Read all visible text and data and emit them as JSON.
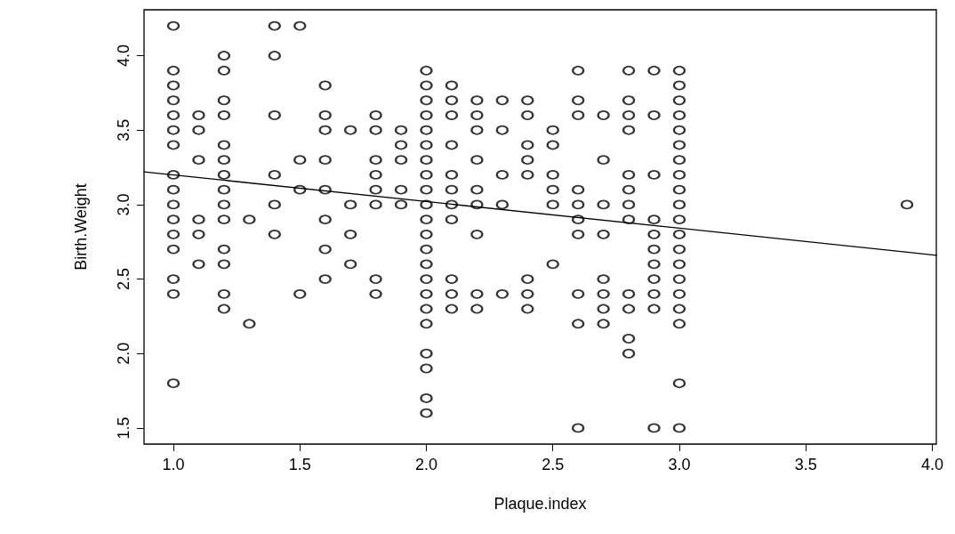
{
  "chart_data": {
    "type": "scatter",
    "xlabel": "Plaque.index",
    "ylabel": "Birth.Weight",
    "xlim": [
      0.884,
      4.016
    ],
    "ylim": [
      1.392,
      4.308
    ],
    "xticks": [
      {
        "value": 1,
        "label": "1.0"
      },
      1.5,
      {
        "value": 2,
        "label": "2.0"
      },
      2.5,
      {
        "value": 3,
        "label": "3.0"
      },
      3.5,
      {
        "value": 4,
        "label": "4.0"
      }
    ],
    "yticks": [
      1.5,
      {
        "value": 2,
        "label": "2.0"
      },
      2.5,
      {
        "value": 3,
        "label": "3.0"
      },
      3.5,
      {
        "value": 4,
        "label": "4.0"
      }
    ],
    "grid": false,
    "marker": "circle",
    "series": [
      {
        "color": "#000000",
        "x": [
          1,
          1,
          1,
          1,
          1,
          1,
          1,
          1,
          1,
          1,
          1,
          1,
          1,
          1,
          1,
          1,
          1.1,
          1.1,
          1.1,
          1.1,
          1.1,
          1.1,
          1.2,
          1.2,
          1.2,
          1.2,
          1.2,
          1.2,
          1.2,
          1.2,
          1.2,
          1.2,
          1.2,
          1.2,
          1.2,
          1.2,
          1.3,
          1.3,
          1.4,
          1.4,
          1.4,
          1.4,
          1.4,
          1.4,
          1.5,
          1.5,
          1.5,
          1.5,
          1.6,
          1.6,
          1.6,
          1.6,
          1.6,
          1.6,
          1.6,
          1.6,
          1.7,
          1.7,
          1.7,
          1.7,
          1.8,
          1.8,
          1.8,
          1.8,
          1.8,
          1.8,
          1.8,
          1.8,
          1.9,
          1.9,
          1.9,
          1.9,
          1.9,
          2,
          2,
          2,
          2,
          2,
          2,
          2,
          2,
          2,
          2,
          2,
          2,
          2,
          2,
          2,
          2,
          2,
          2,
          2,
          2,
          2,
          2,
          2.1,
          2.1,
          2.1,
          2.1,
          2.1,
          2.1,
          2.1,
          2.1,
          2.1,
          2.1,
          2.1,
          2.2,
          2.2,
          2.2,
          2.2,
          2.2,
          2.2,
          2.2,
          2.2,
          2.2,
          2.3,
          2.3,
          2.3,
          2.3,
          2.3,
          2.4,
          2.4,
          2.4,
          2.4,
          2.4,
          2.4,
          2.4,
          2.4,
          2.5,
          2.5,
          2.5,
          2.5,
          2.5,
          2.5,
          2.6,
          2.6,
          2.6,
          2.6,
          2.6,
          2.6,
          2.6,
          2.6,
          2.6,
          2.6,
          2.7,
          2.7,
          2.7,
          2.7,
          2.7,
          2.7,
          2.7,
          2.7,
          2.8,
          2.8,
          2.8,
          2.8,
          2.8,
          2.8,
          2.8,
          2.8,
          2.8,
          2.8,
          2.8,
          2.8,
          2.9,
          2.9,
          2.9,
          2.9,
          2.9,
          2.9,
          2.9,
          2.9,
          2.9,
          2.9,
          2.9,
          3,
          3,
          3,
          3,
          3,
          3,
          3,
          3,
          3,
          3,
          3,
          3,
          3,
          3,
          3,
          3,
          3,
          3,
          3,
          3,
          3.9
        ],
        "values": [
          4.2,
          3.9,
          3.8,
          3.7,
          3.6,
          3.5,
          3.4,
          3.2,
          3.1,
          3.0,
          2.9,
          2.8,
          2.7,
          2.5,
          2.4,
          1.8,
          3.6,
          3.5,
          3.3,
          2.9,
          2.8,
          2.6,
          4.0,
          3.9,
          3.7,
          3.6,
          3.4,
          3.3,
          3.2,
          3.1,
          3.0,
          2.9,
          2.7,
          2.6,
          2.4,
          2.3,
          2.9,
          2.2,
          4.2,
          4.0,
          3.6,
          3.2,
          3.0,
          2.8,
          4.2,
          3.3,
          3.1,
          2.4,
          3.8,
          3.6,
          3.5,
          3.3,
          3.1,
          2.9,
          2.7,
          2.5,
          3.5,
          3.0,
          2.8,
          2.6,
          3.6,
          3.5,
          3.3,
          3.2,
          3.1,
          3.0,
          2.5,
          2.4,
          3.5,
          3.4,
          3.3,
          3.1,
          3.0,
          3.9,
          3.8,
          3.7,
          3.6,
          3.5,
          3.4,
          3.3,
          3.2,
          3.1,
          3.0,
          2.9,
          2.8,
          2.7,
          2.6,
          2.5,
          2.4,
          2.3,
          2.2,
          2.0,
          1.9,
          1.7,
          1.6,
          3.8,
          3.7,
          3.6,
          3.4,
          3.2,
          3.1,
          3.0,
          2.9,
          2.5,
          2.4,
          2.3,
          3.7,
          3.6,
          3.5,
          3.3,
          3.1,
          3.0,
          2.8,
          2.4,
          2.3,
          3.7,
          3.5,
          3.2,
          3.0,
          2.4,
          3.7,
          3.6,
          3.4,
          3.3,
          3.2,
          2.5,
          2.4,
          2.3,
          3.5,
          3.4,
          3.2,
          3.1,
          3.0,
          2.6,
          3.9,
          3.7,
          3.6,
          3.1,
          3.0,
          2.9,
          2.8,
          2.4,
          2.2,
          1.5,
          3.6,
          3.3,
          3.0,
          2.8,
          2.5,
          2.4,
          2.3,
          2.2,
          3.9,
          3.7,
          3.6,
          3.5,
          3.2,
          3.1,
          3.0,
          2.9,
          2.4,
          2.3,
          2.1,
          2.0,
          3.9,
          3.6,
          3.2,
          2.9,
          2.8,
          2.7,
          2.6,
          2.5,
          2.4,
          2.3,
          1.5,
          3.9,
          3.8,
          3.7,
          3.6,
          3.5,
          3.4,
          3.3,
          3.2,
          3.1,
          3.0,
          2.9,
          2.8,
          2.7,
          2.6,
          2.5,
          2.4,
          2.3,
          2.2,
          1.8,
          1.5,
          3.0
        ]
      },
      {
        "type": "line",
        "color": "#000000",
        "marker": "none",
        "line_style": "solid",
        "x": [
          0.884,
          4.016
        ],
        "values": [
          3.22,
          2.66
        ]
      }
    ]
  }
}
